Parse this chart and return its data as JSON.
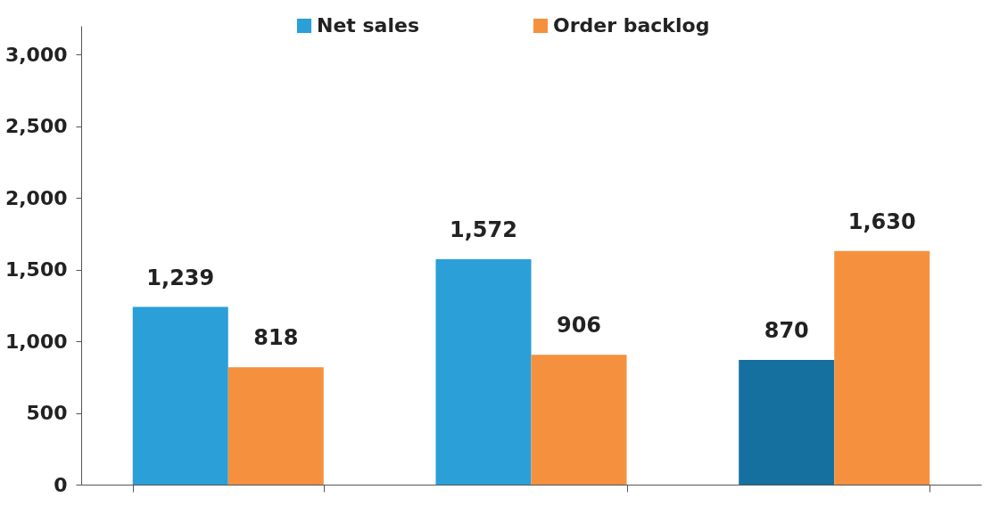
{
  "chart_data": {
    "type": "bar",
    "categories": [
      null,
      null,
      null
    ],
    "series": [
      {
        "name": "Net sales",
        "color": "#2a9fd8",
        "colors": [
          "#2a9fd8",
          "#2a9fd8",
          "#16709f"
        ],
        "values": [
          1239,
          1572,
          870
        ],
        "value_labels": [
          "1,239",
          "1,572",
          "870"
        ]
      },
      {
        "name": "Order backlog",
        "color": "#f5913e",
        "values": [
          818,
          906,
          1630
        ],
        "value_labels": [
          "818",
          "906",
          "1,630"
        ]
      }
    ],
    "ylim": [
      0,
      3200
    ],
    "yticks": [
      {
        "value": 0,
        "label": "0"
      },
      {
        "value": 500,
        "label": "500"
      },
      {
        "value": 1000,
        "label": "1,000"
      },
      {
        "value": 1500,
        "label": "1,500"
      },
      {
        "value": 2000,
        "label": "2,000"
      },
      {
        "value": 2500,
        "label": "2,500"
      },
      {
        "value": 3000,
        "label": "3,000"
      }
    ],
    "legend": "top",
    "grid": false
  }
}
